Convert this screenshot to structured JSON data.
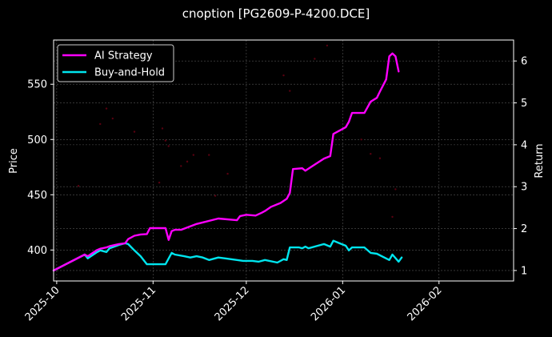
{
  "chart_data": {
    "type": "line",
    "title": "cnoption [PG2609-P-4200.DCE]",
    "xlabel": "",
    "ylabel": "Price",
    "y2label": "Return",
    "legend": {
      "position": "upper left",
      "entries": [
        {
          "name": "AI Strategy",
          "color": "#ff00ff"
        },
        {
          "name": "Buy-and-Hold",
          "color": "#00e5ee"
        }
      ]
    },
    "x_ticks": [
      "2025-10",
      "2025-11",
      "2025-12",
      "2026-01",
      "2026-02"
    ],
    "x_range": [
      "2025-09-30",
      "2026-02-25"
    ],
    "y_left": {
      "label": "Price",
      "ticks": [
        400,
        450,
        500,
        550
      ],
      "range": [
        372,
        590
      ]
    },
    "y_right": {
      "label": "Return",
      "ticks": [
        1,
        2,
        3,
        4,
        5,
        6
      ],
      "range": [
        0.75,
        6.5
      ]
    },
    "grid": true,
    "series": [
      {
        "name": "AI Strategy",
        "axis": "right",
        "color": "#ff00ff",
        "x": [
          "2025-09-30",
          "2025-10-10",
          "2025-10-11",
          "2025-10-14",
          "2025-10-15",
          "2025-10-17",
          "2025-10-18",
          "2025-10-21",
          "2025-10-23",
          "2025-10-24",
          "2025-10-26",
          "2025-10-28",
          "2025-10-30",
          "2025-10-31",
          "2025-11-05",
          "2025-11-06",
          "2025-11-07",
          "2025-11-08",
          "2025-11-10",
          "2025-11-15",
          "2025-11-22",
          "2025-11-28",
          "2025-11-29",
          "2025-12-01",
          "2025-12-04",
          "2025-12-06",
          "2025-12-07",
          "2025-12-09",
          "2025-12-12",
          "2025-12-14",
          "2025-12-15",
          "2025-12-16",
          "2025-12-19",
          "2025-12-20",
          "2025-12-22",
          "2025-12-26",
          "2025-12-28",
          "2025-12-29",
          "2026-01-02",
          "2026-01-03",
          "2026-01-04",
          "2026-01-08",
          "2026-01-10",
          "2026-01-12",
          "2026-01-13",
          "2026-01-15",
          "2026-01-16",
          "2026-01-17",
          "2026-01-18",
          "2026-01-19"
        ],
        "values": [
          1.0,
          1.38,
          1.34,
          1.49,
          1.52,
          1.55,
          1.58,
          1.63,
          1.65,
          1.75,
          1.83,
          1.86,
          1.87,
          2.01,
          2.01,
          1.73,
          1.94,
          1.97,
          1.97,
          2.11,
          2.24,
          2.2,
          2.3,
          2.33,
          2.31,
          2.38,
          2.42,
          2.52,
          2.61,
          2.71,
          2.85,
          3.42,
          3.44,
          3.38,
          3.48,
          3.67,
          3.73,
          4.26,
          4.42,
          4.55,
          4.76,
          4.76,
          5.03,
          5.12,
          5.27,
          5.56,
          6.11,
          6.18,
          6.11,
          5.75
        ]
      },
      {
        "name": "Buy-and-Hold",
        "axis": "right",
        "color": "#00e5ee",
        "x": [
          "2025-09-30",
          "2025-10-10",
          "2025-10-11",
          "2025-10-14",
          "2025-10-15",
          "2025-10-17",
          "2025-10-18",
          "2025-10-21",
          "2025-10-23",
          "2025-10-24",
          "2025-10-26",
          "2025-10-28",
          "2025-10-30",
          "2025-11-05",
          "2025-11-07",
          "2025-11-08",
          "2025-11-11",
          "2025-11-13",
          "2025-11-15",
          "2025-11-17",
          "2025-11-19",
          "2025-11-22",
          "2025-11-24",
          "2025-11-28",
          "2025-11-30",
          "2025-12-03",
          "2025-12-05",
          "2025-12-07",
          "2025-12-11",
          "2025-12-13",
          "2025-12-14",
          "2025-12-15",
          "2025-12-18",
          "2025-12-19",
          "2025-12-20",
          "2025-12-21",
          "2025-12-24",
          "2025-12-26",
          "2025-12-28",
          "2025-12-29",
          "2025-12-31",
          "2026-01-02",
          "2026-01-03",
          "2026-01-04",
          "2026-01-08",
          "2026-01-10",
          "2026-01-12",
          "2026-01-16",
          "2026-01-17",
          "2026-01-19",
          "2026-01-20"
        ],
        "values": [
          1.0,
          1.38,
          1.29,
          1.44,
          1.48,
          1.44,
          1.53,
          1.61,
          1.65,
          1.63,
          1.48,
          1.34,
          1.15,
          1.15,
          1.42,
          1.38,
          1.34,
          1.31,
          1.34,
          1.31,
          1.25,
          1.31,
          1.29,
          1.25,
          1.23,
          1.23,
          1.21,
          1.25,
          1.19,
          1.27,
          1.25,
          1.55,
          1.55,
          1.53,
          1.57,
          1.53,
          1.59,
          1.63,
          1.57,
          1.71,
          1.65,
          1.59,
          1.48,
          1.55,
          1.55,
          1.42,
          1.4,
          1.25,
          1.38,
          1.21,
          1.31
        ]
      },
      {
        "name": "Price (scatter, faint)",
        "axis": "left",
        "type": "scatter",
        "color": "#5a0010",
        "points": [
          [
            "2025-10-08",
            458
          ],
          [
            "2025-10-15",
            514
          ],
          [
            "2025-10-17",
            528
          ],
          [
            "2025-10-19",
            519
          ],
          [
            "2025-10-26",
            507
          ],
          [
            "2025-11-04",
            510
          ],
          [
            "2025-11-05",
            499
          ],
          [
            "2025-11-06",
            494
          ],
          [
            "2025-11-03",
            461
          ],
          [
            "2025-11-10",
            476
          ],
          [
            "2025-11-12",
            480
          ],
          [
            "2025-11-14",
            486
          ],
          [
            "2025-11-19",
            486
          ],
          [
            "2025-11-21",
            449
          ],
          [
            "2025-11-25",
            469
          ],
          [
            "2025-12-13",
            558
          ],
          [
            "2025-12-15",
            544
          ],
          [
            "2025-12-23",
            573
          ],
          [
            "2025-12-27",
            585
          ],
          [
            "2026-01-07",
            500
          ],
          [
            "2026-01-10",
            487
          ],
          [
            "2026-01-13",
            483
          ],
          [
            "2026-01-17",
            430
          ],
          [
            "2026-01-18",
            455
          ]
        ]
      }
    ]
  },
  "legend": {
    "items": [
      {
        "label": "AI Strategy",
        "color": "#ff00ff"
      },
      {
        "label": "Buy-and-Hold",
        "color": "#00e5ee"
      }
    ]
  },
  "colors": {
    "background": "#000000",
    "axes": "#ffffff",
    "grid": "#555555",
    "ai": "#ff00ff",
    "bh": "#00e5ee",
    "scatter": "#5a0010"
  }
}
